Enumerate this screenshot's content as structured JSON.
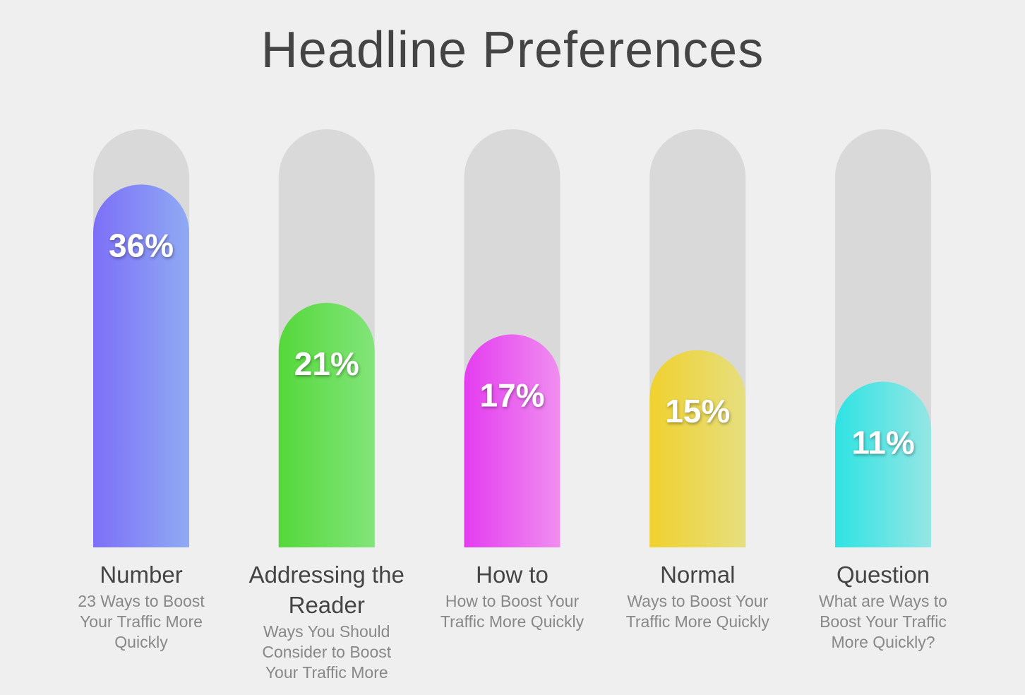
{
  "chart_data": {
    "type": "bar",
    "title": "Headline Preferences",
    "categories": [
      "Number",
      "Addressing the Reader",
      "How to",
      "Normal",
      "Question"
    ],
    "descriptions": [
      "23 Ways to Boost Your Traffic More Quickly",
      "Ways You Should Consider to Boost Your Traffic More",
      "How to Boost Your Traffic More Quickly",
      "Ways to Boost Your Traffic More Quickly",
      "What are Ways to Boost Your Traffic More Quickly?"
    ],
    "values": [
      36,
      21,
      17,
      15,
      11
    ],
    "value_labels": [
      "36%",
      "21%",
      "17%",
      "15%",
      "11%"
    ],
    "colors": [
      [
        "#7d6ff8",
        "#8fabf3"
      ],
      [
        "#55d83a",
        "#82e57a"
      ],
      [
        "#e43cf0",
        "#f08ef0"
      ],
      [
        "#f0d12e",
        "#e6df80"
      ],
      [
        "#2ee3e3",
        "#95e6e4"
      ]
    ],
    "ylim": [
      -10,
      43
    ]
  }
}
